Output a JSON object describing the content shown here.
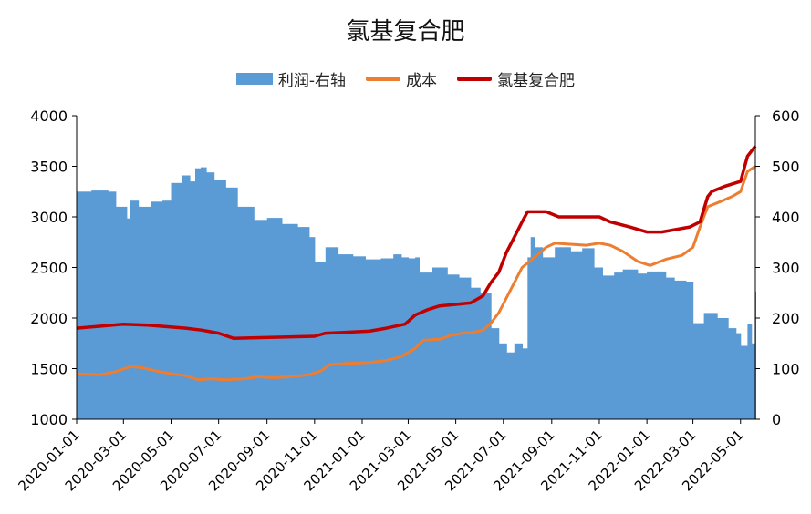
{
  "chart_data": {
    "title": "氯基复合肥",
    "type": "line",
    "legend_position": "top",
    "grid": false,
    "y_left": {
      "min": 1000,
      "max": 4000,
      "ticks": [
        "1000",
        "1500",
        "2000",
        "2500",
        "3000",
        "3500",
        "4000"
      ]
    },
    "y_right": {
      "min": 0,
      "max": 600,
      "ticks": [
        "0",
        "100",
        "200",
        "300",
        "400",
        "500",
        "600"
      ]
    },
    "x_ticks": [
      "2020-01-01",
      "2020-03-01",
      "2020-05-01",
      "2020-07-01",
      "2020-09-01",
      "2020-11-01",
      "2021-01-01",
      "2021-03-01",
      "2021-05-01",
      "2021-07-01",
      "2021-09-01",
      "2021-11-01",
      "2022-01-01",
      "2022-03-01",
      "2022-05-01"
    ],
    "x_range": [
      "2020-01-01",
      "2022-05-20"
    ],
    "series": [
      {
        "name": "利润-右轴",
        "type": "bar",
        "axis": "right",
        "color": "#5b9bd5",
        "points": [
          [
            "2020-01-01",
            450
          ],
          [
            "2020-01-20",
            452
          ],
          [
            "2020-02-10",
            450
          ],
          [
            "2020-02-20",
            420
          ],
          [
            "2020-03-05",
            397
          ],
          [
            "2020-03-10",
            432
          ],
          [
            "2020-03-20",
            420
          ],
          [
            "2020-04-05",
            430
          ],
          [
            "2020-04-20",
            432
          ],
          [
            "2020-05-01",
            467
          ],
          [
            "2020-05-15",
            482
          ],
          [
            "2020-05-25",
            470
          ],
          [
            "2020-06-01",
            496
          ],
          [
            "2020-06-08",
            498
          ],
          [
            "2020-06-15",
            488
          ],
          [
            "2020-06-25",
            472
          ],
          [
            "2020-07-10",
            458
          ],
          [
            "2020-07-25",
            420
          ],
          [
            "2020-08-15",
            394
          ],
          [
            "2020-09-01",
            398
          ],
          [
            "2020-09-20",
            386
          ],
          [
            "2020-10-10",
            380
          ],
          [
            "2020-10-25",
            360
          ],
          [
            "2020-11-01",
            310
          ],
          [
            "2020-11-15",
            340
          ],
          [
            "2020-12-01",
            326
          ],
          [
            "2020-12-20",
            322
          ],
          [
            "2021-01-05",
            316
          ],
          [
            "2021-01-25",
            318
          ],
          [
            "2021-02-10",
            326
          ],
          [
            "2021-02-20",
            320
          ],
          [
            "2021-03-01",
            318
          ],
          [
            "2021-03-10",
            320
          ],
          [
            "2021-03-15",
            290
          ],
          [
            "2021-04-01",
            300
          ],
          [
            "2021-04-20",
            286
          ],
          [
            "2021-05-05",
            280
          ],
          [
            "2021-05-20",
            260
          ],
          [
            "2021-06-01",
            250
          ],
          [
            "2021-06-15",
            180
          ],
          [
            "2021-06-25",
            150
          ],
          [
            "2021-07-05",
            132
          ],
          [
            "2021-07-15",
            150
          ],
          [
            "2021-07-25",
            140
          ],
          [
            "2021-08-01",
            320
          ],
          [
            "2021-08-05",
            360
          ],
          [
            "2021-08-10",
            340
          ],
          [
            "2021-08-20",
            320
          ],
          [
            "2021-09-05",
            340
          ],
          [
            "2021-09-25",
            332
          ],
          [
            "2021-10-10",
            338
          ],
          [
            "2021-10-25",
            300
          ],
          [
            "2021-11-05",
            284
          ],
          [
            "2021-11-20",
            290
          ],
          [
            "2021-12-01",
            296
          ],
          [
            "2021-12-20",
            288
          ],
          [
            "2022-01-01",
            292
          ],
          [
            "2022-01-15",
            292
          ],
          [
            "2022-01-25",
            280
          ],
          [
            "2022-02-05",
            274
          ],
          [
            "2022-02-20",
            272
          ],
          [
            "2022-03-01",
            190
          ],
          [
            "2022-03-15",
            210
          ],
          [
            "2022-04-01",
            200
          ],
          [
            "2022-04-15",
            180
          ],
          [
            "2022-04-25",
            170
          ],
          [
            "2022-05-01",
            145
          ],
          [
            "2022-05-10",
            188
          ],
          [
            "2022-05-15",
            150
          ],
          [
            "2022-05-20",
            252
          ]
        ]
      },
      {
        "name": "成本",
        "type": "line",
        "axis": "left",
        "color": "#ed7d31",
        "points": [
          [
            "2020-01-01",
            1450
          ],
          [
            "2020-02-01",
            1440
          ],
          [
            "2020-02-20",
            1470
          ],
          [
            "2020-03-10",
            1520
          ],
          [
            "2020-03-25",
            1510
          ],
          [
            "2020-04-10",
            1480
          ],
          [
            "2020-05-01",
            1450
          ],
          [
            "2020-05-20",
            1430
          ],
          [
            "2020-06-05",
            1390
          ],
          [
            "2020-06-20",
            1400
          ],
          [
            "2020-07-10",
            1390
          ],
          [
            "2020-08-05",
            1400
          ],
          [
            "2020-08-20",
            1420
          ],
          [
            "2020-09-10",
            1410
          ],
          [
            "2020-10-01",
            1420
          ],
          [
            "2020-10-25",
            1440
          ],
          [
            "2020-11-10",
            1480
          ],
          [
            "2020-11-20",
            1540
          ],
          [
            "2020-12-10",
            1550
          ],
          [
            "2021-01-10",
            1560
          ],
          [
            "2021-02-01",
            1580
          ],
          [
            "2021-02-20",
            1620
          ],
          [
            "2021-03-10",
            1700
          ],
          [
            "2021-03-20",
            1780
          ],
          [
            "2021-04-10",
            1790
          ],
          [
            "2021-04-25",
            1830
          ],
          [
            "2021-05-10",
            1850
          ],
          [
            "2021-05-25",
            1860
          ],
          [
            "2021-06-05",
            1880
          ],
          [
            "2021-06-15",
            1950
          ],
          [
            "2021-06-25",
            2050
          ],
          [
            "2021-07-05",
            2200
          ],
          [
            "2021-07-15",
            2350
          ],
          [
            "2021-07-25",
            2500
          ],
          [
            "2021-08-10",
            2600
          ],
          [
            "2021-08-25",
            2700
          ],
          [
            "2021-09-05",
            2740
          ],
          [
            "2021-09-25",
            2730
          ],
          [
            "2021-10-15",
            2720
          ],
          [
            "2021-11-01",
            2740
          ],
          [
            "2021-11-15",
            2720
          ],
          [
            "2021-12-01",
            2660
          ],
          [
            "2021-12-20",
            2560
          ],
          [
            "2022-01-05",
            2520
          ],
          [
            "2022-01-25",
            2580
          ],
          [
            "2022-02-15",
            2620
          ],
          [
            "2022-03-01",
            2700
          ],
          [
            "2022-03-10",
            2900
          ],
          [
            "2022-03-20",
            3100
          ],
          [
            "2022-04-05",
            3150
          ],
          [
            "2022-04-20",
            3200
          ],
          [
            "2022-05-01",
            3250
          ],
          [
            "2022-05-10",
            3450
          ],
          [
            "2022-05-20",
            3500
          ]
        ]
      },
      {
        "name": "氯基复合肥",
        "type": "line",
        "axis": "left",
        "color": "#c00000",
        "points": [
          [
            "2020-01-01",
            1900
          ],
          [
            "2020-03-01",
            1940
          ],
          [
            "2020-04-01",
            1930
          ],
          [
            "2020-05-20",
            1900
          ],
          [
            "2020-06-10",
            1880
          ],
          [
            "2020-07-01",
            1850
          ],
          [
            "2020-07-20",
            1800
          ],
          [
            "2020-11-01",
            1820
          ],
          [
            "2020-11-15",
            1850
          ],
          [
            "2021-01-10",
            1870
          ],
          [
            "2021-02-01",
            1900
          ],
          [
            "2021-02-25",
            1940
          ],
          [
            "2021-03-10",
            2030
          ],
          [
            "2021-03-25",
            2080
          ],
          [
            "2021-04-10",
            2120
          ],
          [
            "2021-05-20",
            2150
          ],
          [
            "2021-06-05",
            2220
          ],
          [
            "2021-06-15",
            2350
          ],
          [
            "2021-06-25",
            2450
          ],
          [
            "2021-07-05",
            2650
          ],
          [
            "2021-07-15",
            2800
          ],
          [
            "2021-07-25",
            2950
          ],
          [
            "2021-08-01",
            3050
          ],
          [
            "2021-08-25",
            3050
          ],
          [
            "2021-09-10",
            3000
          ],
          [
            "2021-10-10",
            3000
          ],
          [
            "2021-11-01",
            3000
          ],
          [
            "2021-11-15",
            2950
          ],
          [
            "2021-12-10",
            2900
          ],
          [
            "2022-01-01",
            2850
          ],
          [
            "2022-01-20",
            2850
          ],
          [
            "2022-02-25",
            2900
          ],
          [
            "2022-03-10",
            2950
          ],
          [
            "2022-03-20",
            3200
          ],
          [
            "2022-03-25",
            3250
          ],
          [
            "2022-04-10",
            3300
          ],
          [
            "2022-05-01",
            3350
          ],
          [
            "2022-05-10",
            3600
          ],
          [
            "2022-05-20",
            3700
          ]
        ]
      }
    ]
  }
}
